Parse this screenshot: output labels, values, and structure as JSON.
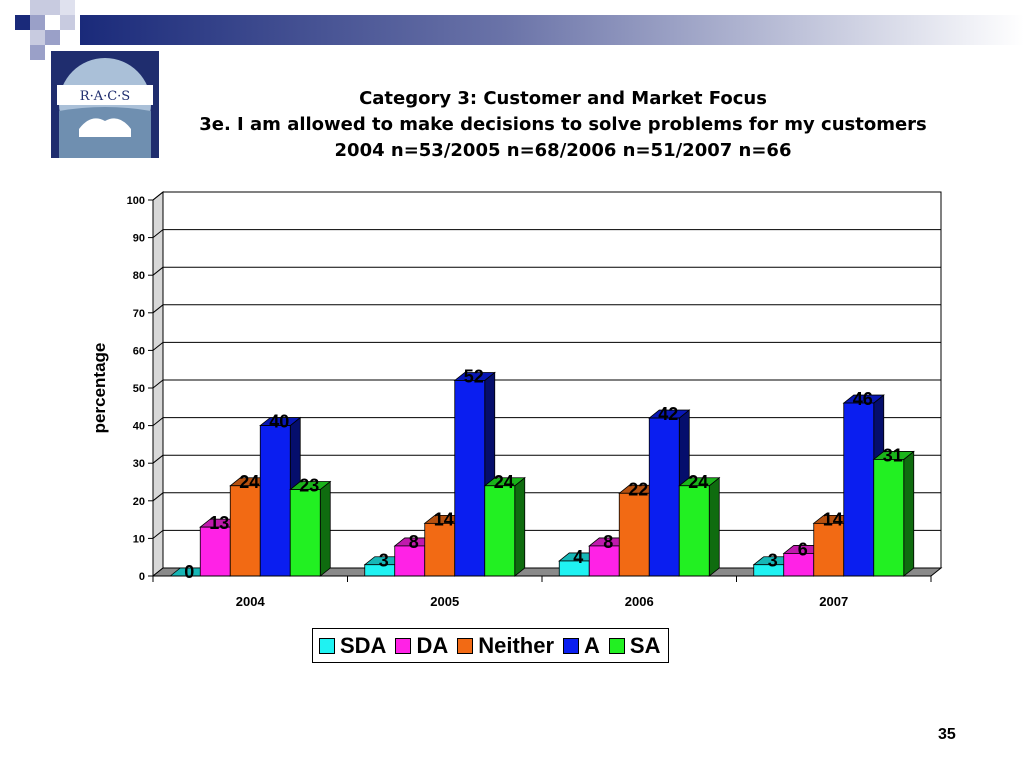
{
  "slide": {
    "title_line1": "Category 3: Customer and Market Focus",
    "title_line2": "3e. I am allowed to make decisions to solve problems for my customers",
    "title_line3": "2004 n=53/2005 n=68/2006 n=51/2007 n=66",
    "page_number": "35"
  },
  "logo": {
    "text": "R·A·C·S"
  },
  "colors": {
    "SDA": "#1ff2f2",
    "DA": "#ff22e6",
    "Neither": "#f26a14",
    "A": "#0a1ef0",
    "SA": "#22f022"
  },
  "chart_data": {
    "type": "bar",
    "title": "Category 3: Customer and Market Focus",
    "subtitle": "3e. I am allowed to make decisions to solve problems for my customers",
    "xlabel": "",
    "ylabel": "percentage",
    "ylim": [
      0,
      100
    ],
    "yticks": [
      0,
      10,
      20,
      30,
      40,
      50,
      60,
      70,
      80,
      90,
      100
    ],
    "categories": [
      "2004",
      "2005",
      "2006",
      "2007"
    ],
    "series": [
      {
        "name": "SDA",
        "values": [
          0,
          3,
          4,
          3
        ]
      },
      {
        "name": "DA",
        "values": [
          13,
          8,
          8,
          6
        ]
      },
      {
        "name": "Neither",
        "values": [
          24,
          14,
          22,
          14
        ]
      },
      {
        "name": "A",
        "values": [
          40,
          52,
          42,
          46
        ]
      },
      {
        "name": "SA",
        "values": [
          23,
          24,
          24,
          31
        ]
      }
    ],
    "grid": true,
    "legend": "bottom",
    "style": "3d-clustered-column"
  }
}
